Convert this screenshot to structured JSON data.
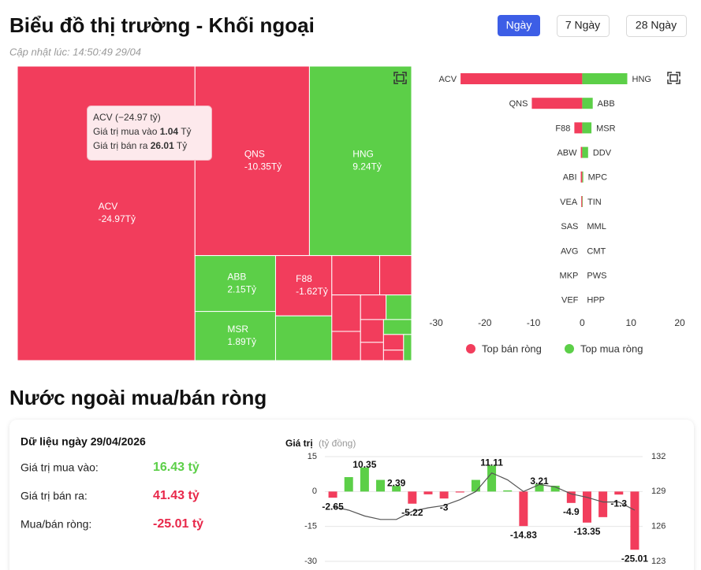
{
  "header": {
    "title": "Biểu đồ thị trường - Khối ngoại",
    "updated": "Cập nhật lúc: 14:50:49 29/04"
  },
  "tabs": [
    "Ngày",
    "7 Ngày",
    "28 Ngày"
  ],
  "tooltip": {
    "title": "ACV (−24.97 tỷ)",
    "rows": [
      {
        "label": "Giá trị mua vào",
        "value": "1.04",
        "unit": "Tỷ"
      },
      {
        "label": "Giá trị bán ra",
        "value": "26.01",
        "unit": "Tỷ"
      }
    ]
  },
  "section_title": "Nước ngoài mua/bán ròng",
  "summary": {
    "title": "Dữ liệu ngày 29/04/2026",
    "rows": [
      {
        "label": "Giá trị mua vào:",
        "value": "16.43 tỷ"
      },
      {
        "label": "Giá trị bán ra:",
        "value": "41.43 tỷ"
      },
      {
        "label": "Mua/bán ròng:",
        "value": "-25.01 tỷ"
      }
    ]
  },
  "chart_data": [
    {
      "type": "treemap",
      "categories": [
        "ACV",
        "QNS",
        "HNG",
        "ABB",
        "MSR",
        "F88",
        null,
        null,
        null,
        null,
        null,
        null,
        null,
        null,
        null,
        null,
        null,
        null,
        null
      ],
      "values": [
        -24.97,
        -10.35,
        9.24,
        2.15,
        1.89,
        -1.62,
        1.2,
        -0.9,
        -0.6,
        -0.5,
        -0.4,
        -0.3,
        0.3,
        -0.25,
        -0.2,
        0.2,
        -0.15,
        -0.1,
        0.1
      ],
      "value_labels": [
        "-24.97Tỷ",
        "-10.35Tỷ",
        "9.24Tỷ",
        "2.15Tỷ",
        "1.89Tỷ",
        "-1.62Tỷ",
        null,
        null,
        null,
        null,
        null,
        null,
        null,
        null,
        null,
        null,
        null,
        null,
        null
      ],
      "colors": {
        "negative": "#f23d5c",
        "positive": "#5ccf48"
      }
    },
    {
      "type": "diverging_bar",
      "xlim": [
        -30,
        20
      ],
      "xticks": [
        -30,
        -20,
        -10,
        0,
        10,
        20
      ],
      "legend": "bottom",
      "series": [
        {
          "name": "Top bán ròng",
          "color": "#f23d5c",
          "categories": [
            "ACV",
            "QNS",
            "F88",
            "ABW",
            "ABI",
            "VEA",
            "SAS",
            "AVG",
            "MKP",
            "VEF"
          ],
          "values": [
            -24.97,
            -10.35,
            -1.62,
            -0.3,
            -0.3,
            -0.2,
            0,
            0,
            0,
            0
          ]
        },
        {
          "name": "Top mua ròng",
          "color": "#5ccf48",
          "categories": [
            "HNG",
            "ABB",
            "MSR",
            "DDV",
            "MPC",
            "TIN",
            "MML",
            "CMT",
            "PWS",
            "HPP"
          ],
          "values": [
            9.24,
            2.15,
            1.89,
            1.2,
            0.2,
            0.1,
            0,
            0,
            0,
            0
          ]
        }
      ]
    },
    {
      "type": "bar_line",
      "y_label": "Giá trị",
      "y_unit": "(tỷ đồng)",
      "ylim": [
        -30,
        15
      ],
      "yticks": [
        15,
        0,
        -15,
        -30
      ],
      "y2lim": [
        123,
        132
      ],
      "y2ticks": [
        132,
        129,
        126,
        123
      ],
      "grid": true,
      "series": [
        {
          "type": "bar",
          "colors": {
            "positive": "#5ccf48",
            "negative": "#f23d5c"
          },
          "values": [
            -2.65,
            6.2,
            10.35,
            5.0,
            2.39,
            -5.22,
            -1.2,
            -3,
            -0.4,
            5.0,
            11.11,
            0.5,
            -14.83,
            3.21,
            2.5,
            -4.9,
            -13.35,
            -11,
            -1.3,
            -25.01
          ],
          "value_labels": [
            "-2.65",
            null,
            "10.35",
            null,
            "2.39",
            "-5.22",
            null,
            "-3",
            null,
            null,
            "11.11",
            null,
            "-14.83",
            "3.21",
            null,
            "-4.9",
            "-13.35",
            null,
            "-1.3",
            "-25.01"
          ]
        },
        {
          "type": "line",
          "axis": "y2",
          "color": "#555555",
          "values": [
            127.7,
            127.4,
            126.9,
            126.6,
            126.6,
            127.3,
            127.6,
            127.8,
            128.3,
            129.0,
            130.6,
            130.0,
            129.0,
            129.6,
            129.4,
            128.8,
            128.5,
            128.1,
            128.1,
            127.4
          ]
        }
      ]
    }
  ]
}
